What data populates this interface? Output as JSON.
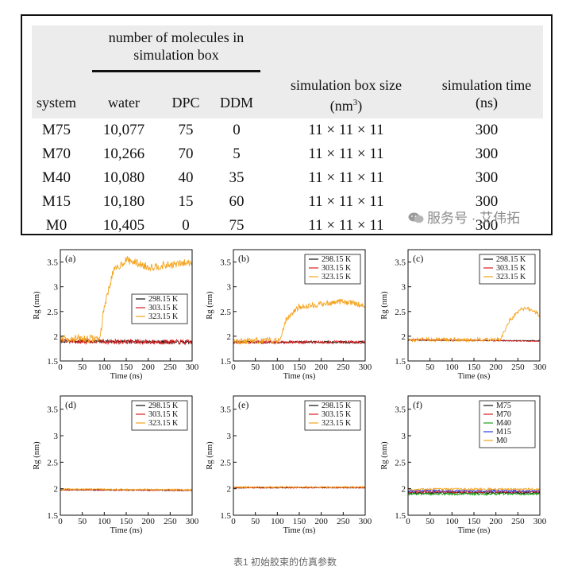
{
  "table": {
    "group_header": "number of molecules in simulation box",
    "group_header_lines": [
      "number of molecules in",
      "simulation box"
    ],
    "columns": [
      "system",
      "water",
      "DPC",
      "DDM",
      "simulation box size (nm³)",
      "simulation time (ns)"
    ],
    "col_box_size_line1": "simulation box size",
    "col_box_size_line2": "(nm",
    "col_box_size_sup": "3",
    "col_box_size_close": ")",
    "col_time_line1": "simulation time",
    "col_time_line2": "(ns)",
    "rows": [
      {
        "system": "M75",
        "water": "10,077",
        "dpc": "75",
        "ddm": "0",
        "box": "11 × 11 × 11",
        "time": "300"
      },
      {
        "system": "M70",
        "water": "10,266",
        "dpc": "70",
        "ddm": "5",
        "box": "11 × 11 × 11",
        "time": "300"
      },
      {
        "system": "M40",
        "water": "10,080",
        "dpc": "40",
        "ddm": "35",
        "box": "11 × 11 × 11",
        "time": "300"
      },
      {
        "system": "M15",
        "water": "10,180",
        "dpc": "15",
        "ddm": "60",
        "box": "11 × 11 × 11",
        "time": "300"
      },
      {
        "system": "M0",
        "water": "10,405",
        "dpc": "0",
        "ddm": "75",
        "box": "11 × 11 × 11",
        "time": "300"
      }
    ]
  },
  "watermark": "服务号 · 艾伟拓",
  "caption": "表1 初始胶束的仿真参数",
  "colors": {
    "black": "#111111",
    "red": "#d81e1e",
    "orange": "#f5a21b",
    "green": "#1aa31a",
    "blue": "#2a3be0"
  },
  "chart_data": [
    {
      "panel": "(a)",
      "type": "line",
      "xlabel": "Time (ns)",
      "ylabel": "Rg (nm)",
      "xlim": [
        0,
        300
      ],
      "ylim": [
        1.5,
        3.75
      ],
      "xticks": [
        0,
        50,
        100,
        150,
        200,
        250,
        300
      ],
      "yticks": [
        1.5,
        2,
        2.5,
        3,
        3.5
      ],
      "xtick_labels": [
        "0",
        "50",
        "100",
        "150",
        "200",
        "250",
        "300"
      ],
      "ytick_labels": [
        "1.5",
        "2",
        "2.5",
        "3",
        "3.5"
      ],
      "legend_position": "center-right",
      "series": [
        {
          "name": "298.15 K",
          "color": "black",
          "segments": [
            [
              0,
              1.9
            ],
            [
              300,
              1.88
            ]
          ],
          "noise": 0.03
        },
        {
          "name": "303.15 K",
          "color": "red",
          "segments": [
            [
              0,
              1.9
            ],
            [
              300,
              1.88
            ]
          ],
          "noise": 0.05
        },
        {
          "name": "323.15 K",
          "color": "orange",
          "segments": [
            [
              0,
              1.95
            ],
            [
              90,
              1.95
            ],
            [
              100,
              2.6
            ],
            [
              120,
              3.3
            ],
            [
              150,
              3.55
            ],
            [
              200,
              3.4
            ],
            [
              260,
              3.45
            ],
            [
              300,
              3.5
            ]
          ],
          "noise": 0.08
        }
      ]
    },
    {
      "panel": "(b)",
      "type": "line",
      "xlabel": "Time (ns)",
      "ylabel": "Rg (nm)",
      "xlim": [
        0,
        300
      ],
      "ylim": [
        1.5,
        3.75
      ],
      "xticks": [
        0,
        50,
        100,
        150,
        200,
        250,
        300
      ],
      "yticks": [
        1.5,
        2,
        2.5,
        3,
        3.5
      ],
      "xtick_labels": [
        "0",
        "50",
        "100",
        "150",
        "200",
        "250",
        "300"
      ],
      "ytick_labels": [
        "1.5",
        "2",
        "2.5",
        "3",
        "3.5"
      ],
      "legend_position": "top-right",
      "series": [
        {
          "name": "298.15 K",
          "color": "black",
          "segments": [
            [
              0,
              1.88
            ],
            [
              300,
              1.88
            ]
          ],
          "noise": 0.02
        },
        {
          "name": "303.15 K",
          "color": "red",
          "segments": [
            [
              0,
              1.88
            ],
            [
              300,
              1.88
            ]
          ],
          "noise": 0.03
        },
        {
          "name": "323.15 K",
          "color": "orange",
          "segments": [
            [
              0,
              1.9
            ],
            [
              105,
              1.92
            ],
            [
              120,
              2.35
            ],
            [
              150,
              2.6
            ],
            [
              200,
              2.65
            ],
            [
              250,
              2.7
            ],
            [
              300,
              2.62
            ]
          ],
          "noise": 0.06
        }
      ]
    },
    {
      "panel": "(c)",
      "type": "line",
      "xlabel": "Time (ns)",
      "ylabel": "Rg (nm)",
      "xlim": [
        0,
        300
      ],
      "ylim": [
        1.5,
        3.75
      ],
      "xticks": [
        0,
        50,
        100,
        150,
        200,
        250,
        300
      ],
      "yticks": [
        1.5,
        2,
        2.5,
        3,
        3.5
      ],
      "xtick_labels": [
        "0",
        "50",
        "100",
        "150",
        "200",
        "250",
        "300"
      ],
      "ytick_labels": [
        "1.5",
        "2",
        "2.5",
        "3",
        "3.5"
      ],
      "legend_position": "top-right",
      "series": [
        {
          "name": "298.15 K",
          "color": "black",
          "segments": [
            [
              0,
              1.92
            ],
            [
              300,
              1.91
            ]
          ],
          "noise": 0.01
        },
        {
          "name": "303.15 K",
          "color": "red",
          "segments": [
            [
              0,
              1.93
            ],
            [
              300,
              1.9
            ]
          ],
          "noise": 0.01
        },
        {
          "name": "323.15 K",
          "color": "orange",
          "segments": [
            [
              0,
              1.93
            ],
            [
              210,
              1.93
            ],
            [
              230,
              2.3
            ],
            [
              255,
              2.55
            ],
            [
              280,
              2.55
            ],
            [
              300,
              2.42
            ]
          ],
          "noise": 0.04
        }
      ]
    },
    {
      "panel": "(d)",
      "type": "line",
      "xlabel": "Time (ns)",
      "ylabel": "Rg (nm)",
      "xlim": [
        0,
        300
      ],
      "ylim": [
        1.5,
        3.75
      ],
      "xticks": [
        0,
        50,
        100,
        150,
        200,
        250,
        300
      ],
      "yticks": [
        1.5,
        2,
        2.5,
        3,
        3.5
      ],
      "xtick_labels": [
        "0",
        "50",
        "100",
        "150",
        "200",
        "250",
        "300"
      ],
      "ytick_labels": [
        "1.5",
        "2",
        "2.5",
        "3",
        "3.5"
      ],
      "legend_position": "top-right",
      "series": [
        {
          "name": "298.15 K",
          "color": "black",
          "segments": [
            [
              0,
              1.98
            ],
            [
              300,
              1.97
            ]
          ],
          "noise": 0.01
        },
        {
          "name": "303.15 K",
          "color": "red",
          "segments": [
            [
              0,
              1.98
            ],
            [
              300,
              1.97
            ]
          ],
          "noise": 0.01
        },
        {
          "name": "323.15 K",
          "color": "orange",
          "segments": [
            [
              0,
              1.99
            ],
            [
              300,
              1.98
            ]
          ],
          "noise": 0.015
        }
      ]
    },
    {
      "panel": "(e)",
      "type": "line",
      "xlabel": "Time (ns)",
      "ylabel": "Rg (nm)",
      "xlim": [
        0,
        300
      ],
      "ylim": [
        1.5,
        3.75
      ],
      "xticks": [
        0,
        50,
        100,
        150,
        200,
        250,
        300
      ],
      "yticks": [
        1.5,
        2,
        2.5,
        3,
        3.5
      ],
      "xtick_labels": [
        "0",
        "50",
        "100",
        "150",
        "200",
        "250",
        "300"
      ],
      "ytick_labels": [
        "1.5",
        "2",
        "2.5",
        "3",
        "3.5"
      ],
      "legend_position": "top-right",
      "series": [
        {
          "name": "298.15 K",
          "color": "black",
          "segments": [
            [
              0,
              2.02
            ],
            [
              300,
              2.02
            ]
          ],
          "noise": 0.01
        },
        {
          "name": "303.15 K",
          "color": "red",
          "segments": [
            [
              0,
              2.02
            ],
            [
              300,
              2.02
            ]
          ],
          "noise": 0.01
        },
        {
          "name": "323.15 K",
          "color": "orange",
          "segments": [
            [
              0,
              2.03
            ],
            [
              300,
              2.03
            ]
          ],
          "noise": 0.015
        }
      ]
    },
    {
      "panel": "(f)",
      "type": "line",
      "xlabel": "Time (ns)",
      "ylabel": "Rg (nm)",
      "xlim": [
        0,
        300
      ],
      "ylim": [
        1.5,
        3.75
      ],
      "xticks": [
        0,
        50,
        100,
        150,
        200,
        250,
        300
      ],
      "yticks": [
        1.5,
        2,
        2.5,
        3,
        3.5
      ],
      "xtick_labels": [
        "0",
        "50",
        "100",
        "150",
        "200",
        "250",
        "300"
      ],
      "ytick_labels": [
        "1.5",
        "2",
        "2.5",
        "3",
        "3.5"
      ],
      "legend_position": "top-right",
      "series": [
        {
          "name": "M75",
          "color": "black",
          "segments": [
            [
              0,
              1.92
            ],
            [
              300,
              1.92
            ]
          ],
          "noise": 0.02
        },
        {
          "name": "M70",
          "color": "red",
          "segments": [
            [
              0,
              1.94
            ],
            [
              300,
              1.94
            ]
          ],
          "noise": 0.02
        },
        {
          "name": "M40",
          "color": "green",
          "segments": [
            [
              0,
              1.9
            ],
            [
              300,
              1.9
            ]
          ],
          "noise": 0.02
        },
        {
          "name": "M15",
          "color": "blue",
          "segments": [
            [
              0,
              1.96
            ],
            [
              300,
              1.96
            ]
          ],
          "noise": 0.02
        },
        {
          "name": "M0",
          "color": "orange",
          "segments": [
            [
              0,
              1.99
            ],
            [
              300,
              1.99
            ]
          ],
          "noise": 0.02
        }
      ]
    }
  ]
}
